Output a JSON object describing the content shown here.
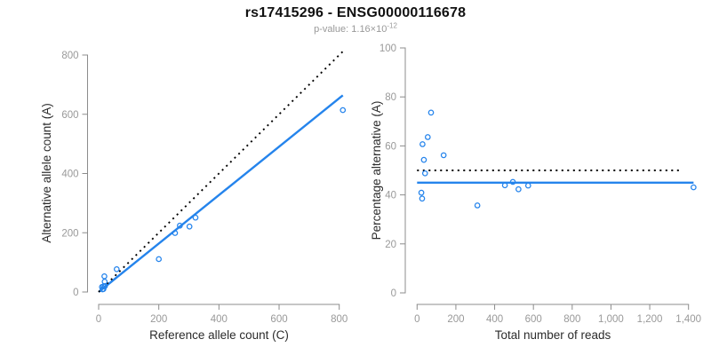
{
  "header": {
    "title": "rs17415296 - ENSG00000116678",
    "p_value_label": "p-value: 1.16×10",
    "p_value_exponent": "-12"
  },
  "colors": {
    "line_blue": "#2584EC",
    "dotted_line": "#000000",
    "axis": "#8C8C8C",
    "tick_labels": "#999999",
    "axis_titles": "#2B2B2B"
  },
  "chart_data": [
    {
      "type": "scatter",
      "name": "allele-counts-scatter",
      "xlabel": "Reference allele count (C)",
      "ylabel": "Alternative allele count (A)",
      "xlim": [
        0,
        820
      ],
      "ylim": [
        0,
        820
      ],
      "xticks": [
        0,
        200,
        400,
        600,
        800
      ],
      "xtick_labels": [
        "0",
        "200",
        "400",
        "600",
        "800"
      ],
      "yticks": [
        0,
        200,
        400,
        600,
        800
      ],
      "ytick_labels": [
        "0",
        "200",
        "400",
        "600",
        "800"
      ],
      "grid": false,
      "legend": false,
      "points": [
        [
          13,
          9
        ],
        [
          16,
          10
        ],
        [
          11,
          17
        ],
        [
          16,
          19
        ],
        [
          21,
          20
        ],
        [
          20,
          35
        ],
        [
          19,
          53
        ],
        [
          60,
          77
        ],
        [
          200,
          111
        ],
        [
          254,
          199
        ],
        [
          270,
          224
        ],
        [
          302,
          221
        ],
        [
          322,
          251
        ],
        [
          812,
          614
        ]
      ],
      "lines": [
        {
          "name": "fitted-line",
          "style": "solid",
          "color_key": "line_blue",
          "x": [
            0,
            812
          ],
          "y": [
            0,
            664
          ]
        },
        {
          "name": "identity-line",
          "style": "dotted",
          "color_key": "dotted_line",
          "x": [
            0,
            812
          ],
          "y": [
            0,
            812
          ]
        }
      ]
    },
    {
      "type": "scatter",
      "name": "percentage-scatter",
      "xlabel": "Total number of reads",
      "ylabel": "Percentage alternative (A)",
      "xlim": [
        0,
        1430
      ],
      "ylim": [
        0,
        100
      ],
      "xticks": [
        0,
        200,
        400,
        600,
        800,
        1000,
        1200,
        1400
      ],
      "xtick_labels": [
        "0",
        "200",
        "400",
        "600",
        "800",
        "1,000",
        "1,200",
        "1,400"
      ],
      "yticks": [
        0,
        20,
        40,
        60,
        80,
        100
      ],
      "ytick_labels": [
        "0",
        "20",
        "40",
        "60",
        "80",
        "100"
      ],
      "grid": false,
      "legend": false,
      "points": [
        [
          22,
          40.9
        ],
        [
          26,
          38.5
        ],
        [
          28,
          60.7
        ],
        [
          35,
          54.3
        ],
        [
          41,
          48.8
        ],
        [
          55,
          63.6
        ],
        [
          72,
          73.6
        ],
        [
          137,
          56.2
        ],
        [
          311,
          35.7
        ],
        [
          453,
          43.9
        ],
        [
          494,
          45.3
        ],
        [
          523,
          42.3
        ],
        [
          573,
          43.8
        ],
        [
          1426,
          43.1
        ]
      ],
      "lines": [
        {
          "name": "fitted-line",
          "style": "solid",
          "color_key": "line_blue",
          "x": [
            0,
            1426
          ],
          "y": [
            45,
            45
          ]
        },
        {
          "name": "expected-line",
          "style": "dotted",
          "color_key": "dotted_line",
          "x": [
            0,
            1370
          ],
          "y": [
            50,
            50
          ]
        }
      ]
    }
  ]
}
